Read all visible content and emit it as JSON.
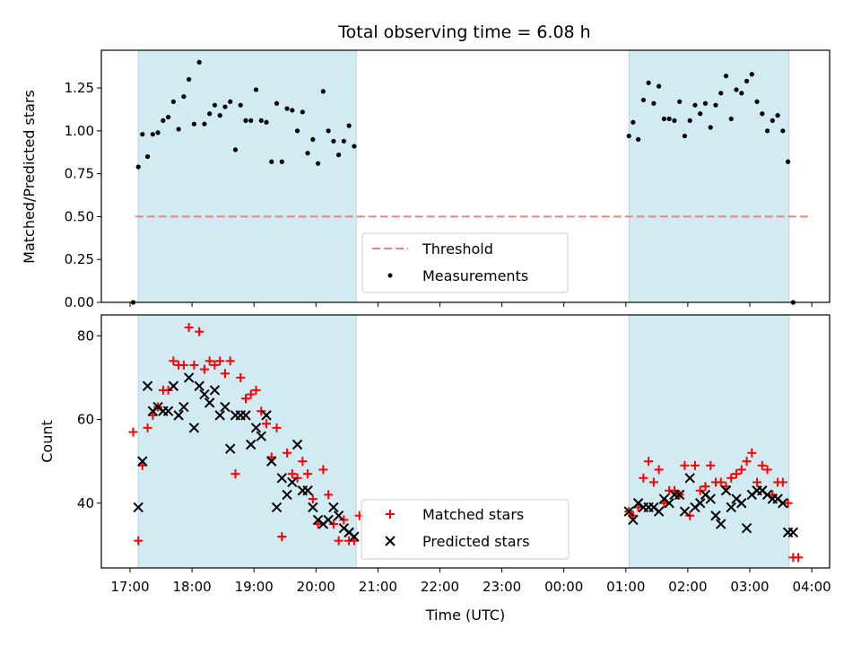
{
  "chart_data": {
    "type": "scatter",
    "title": "Total observing time = 6.08 h",
    "xlabel": "Time (UTC)",
    "x_tick_labels": [
      "17:00",
      "18:00",
      "19:00",
      "20:00",
      "21:00",
      "22:00",
      "23:00",
      "00:00",
      "01:00",
      "02:00",
      "03:00",
      "04:00"
    ],
    "shaded_intervals": [
      [
        "17:08",
        "20:39"
      ],
      [
        "01:03",
        "03:38"
      ]
    ],
    "colors": {
      "matched": "#ff0000",
      "predicted": "#000000",
      "threshold": "#f08080",
      "shade": "#add8e6"
    },
    "top_panel": {
      "ylabel": "Matched/Predicted stars",
      "ylim": [
        0,
        1.47
      ],
      "y_ticks": [
        "0.00",
        "0.25",
        "0.50",
        "0.75",
        "1.00",
        "1.25"
      ],
      "threshold": {
        "name": "Threshold",
        "value": 0.5,
        "x_range": [
          "17:05",
          "04:00"
        ]
      },
      "legend": {
        "placement": "lower-center"
      },
      "series": [
        {
          "name": "Measurements",
          "x": [
            "17:03",
            "17:08",
            "17:12",
            "17:17",
            "17:22",
            "17:27",
            "17:32",
            "17:37",
            "17:42",
            "17:47",
            "17:52",
            "17:57",
            "18:02",
            "18:07",
            "18:12",
            "18:17",
            "18:22",
            "18:27",
            "18:32",
            "18:37",
            "18:42",
            "18:47",
            "18:52",
            "18:57",
            "19:02",
            "19:07",
            "19:12",
            "19:17",
            "19:22",
            "19:27",
            "19:32",
            "19:37",
            "19:42",
            "19:47",
            "19:52",
            "19:57",
            "20:02",
            "20:07",
            "20:12",
            "20:17",
            "20:22",
            "20:27",
            "20:32",
            "20:37",
            "01:03",
            "01:07",
            "01:12",
            "01:17",
            "01:22",
            "01:27",
            "01:32",
            "01:37",
            "01:42",
            "01:47",
            "01:52",
            "01:57",
            "02:02",
            "02:07",
            "02:12",
            "02:17",
            "02:22",
            "02:27",
            "02:32",
            "02:37",
            "02:42",
            "02:47",
            "02:52",
            "02:57",
            "03:02",
            "03:07",
            "03:12",
            "03:17",
            "03:22",
            "03:27",
            "03:32",
            "03:37",
            "03:42"
          ],
          "y": [
            0.0,
            0.79,
            0.98,
            0.85,
            0.98,
            0.99,
            1.06,
            1.08,
            1.17,
            1.01,
            1.2,
            1.3,
            1.04,
            1.4,
            1.04,
            1.1,
            1.15,
            1.09,
            1.14,
            1.17,
            0.89,
            1.15,
            1.06,
            1.06,
            1.24,
            1.06,
            1.05,
            0.82,
            1.16,
            0.82,
            1.13,
            1.12,
            1.0,
            1.11,
            0.87,
            0.95,
            0.81,
            1.23,
            1.0,
            0.94,
            0.86,
            0.94,
            1.03,
            0.91,
            0.97,
            1.05,
            0.95,
            1.18,
            1.28,
            1.16,
            1.26,
            1.07,
            1.07,
            1.06,
            1.17,
            0.97,
            1.06,
            1.15,
            1.1,
            1.16,
            1.02,
            1.15,
            1.22,
            1.32,
            1.07,
            1.24,
            1.22,
            1.29,
            1.33,
            1.17,
            1.1,
            1.0,
            1.06,
            1.09,
            1.0,
            0.82,
            0.0
          ]
        }
      ]
    },
    "bottom_panel": {
      "ylabel": "Count",
      "ylim": [
        24.5,
        85
      ],
      "y_ticks": [
        "40",
        "60",
        "80"
      ],
      "legend": {
        "placement": "lower-center"
      },
      "series": [
        {
          "name": "Matched stars",
          "x": [
            "17:03",
            "17:08",
            "17:12",
            "17:17",
            "17:22",
            "17:27",
            "17:32",
            "17:37",
            "17:42",
            "17:47",
            "17:52",
            "17:57",
            "18:02",
            "18:07",
            "18:12",
            "18:17",
            "18:22",
            "18:27",
            "18:32",
            "18:37",
            "18:42",
            "18:47",
            "18:52",
            "18:57",
            "19:02",
            "19:07",
            "19:12",
            "19:17",
            "19:22",
            "19:27",
            "19:32",
            "19:37",
            "19:42",
            "19:47",
            "19:52",
            "19:57",
            "20:02",
            "20:07",
            "20:12",
            "20:17",
            "20:22",
            "20:27",
            "20:32",
            "20:37",
            "20:42",
            "01:03",
            "01:07",
            "01:12",
            "01:17",
            "01:22",
            "01:27",
            "01:32",
            "01:37",
            "01:42",
            "01:47",
            "01:52",
            "01:57",
            "02:02",
            "02:07",
            "02:12",
            "02:17",
            "02:22",
            "02:27",
            "02:32",
            "02:37",
            "02:42",
            "02:47",
            "02:52",
            "02:57",
            "03:02",
            "03:07",
            "03:12",
            "03:17",
            "03:22",
            "03:27",
            "03:32",
            "03:37",
            "03:42",
            "03:47"
          ],
          "y": [
            57,
            31,
            49,
            58,
            61,
            63,
            67,
            67,
            74,
            73,
            73,
            82,
            73,
            81,
            72,
            74,
            73,
            74,
            71,
            74,
            47,
            70,
            65,
            66,
            67,
            62,
            59,
            51,
            58,
            32,
            52,
            47,
            46,
            50,
            47,
            41,
            35,
            48,
            42,
            35,
            31,
            36,
            31,
            31,
            37,
            38,
            37,
            39,
            46,
            50,
            45,
            48,
            40,
            43,
            43,
            42,
            49,
            37,
            49,
            43,
            44,
            49,
            45,
            45,
            44,
            46,
            47,
            48,
            50,
            52,
            45,
            49,
            48,
            42,
            45,
            45,
            40,
            27,
            27
          ]
        },
        {
          "name": "Predicted stars",
          "x": [
            "17:08",
            "17:12",
            "17:17",
            "17:22",
            "17:27",
            "17:32",
            "17:37",
            "17:42",
            "17:47",
            "17:52",
            "17:57",
            "18:02",
            "18:07",
            "18:12",
            "18:17",
            "18:22",
            "18:27",
            "18:32",
            "18:37",
            "18:42",
            "18:47",
            "18:52",
            "18:57",
            "19:02",
            "19:07",
            "19:12",
            "19:17",
            "19:22",
            "19:27",
            "19:32",
            "19:37",
            "19:42",
            "19:47",
            "19:52",
            "19:57",
            "20:02",
            "20:07",
            "20:12",
            "20:17",
            "20:22",
            "20:27",
            "20:32",
            "20:37",
            "01:03",
            "01:07",
            "01:12",
            "01:17",
            "01:22",
            "01:27",
            "01:32",
            "01:37",
            "01:42",
            "01:47",
            "01:52",
            "01:57",
            "02:02",
            "02:07",
            "02:12",
            "02:17",
            "02:22",
            "02:27",
            "02:32",
            "02:37",
            "02:42",
            "02:47",
            "02:52",
            "02:57",
            "03:02",
            "03:07",
            "03:12",
            "03:17",
            "03:22",
            "03:27",
            "03:32",
            "03:37",
            "03:42"
          ],
          "y": [
            39,
            50,
            68,
            62,
            63,
            62,
            62,
            68,
            61,
            63,
            70,
            58,
            68,
            66,
            64,
            67,
            61,
            63,
            53,
            61,
            61,
            61,
            54,
            58,
            56,
            61,
            50,
            39,
            46,
            42,
            45,
            54,
            43,
            43,
            39,
            36,
            35,
            36,
            39,
            37,
            34,
            33,
            32,
            38,
            36,
            40,
            39,
            39,
            39,
            38,
            41,
            40,
            42,
            42,
            38,
            46,
            39,
            40,
            42,
            41,
            37,
            35,
            43,
            39,
            41,
            40,
            34,
            42,
            43,
            43,
            42,
            41,
            41,
            40,
            33,
            33
          ]
        }
      ]
    }
  }
}
